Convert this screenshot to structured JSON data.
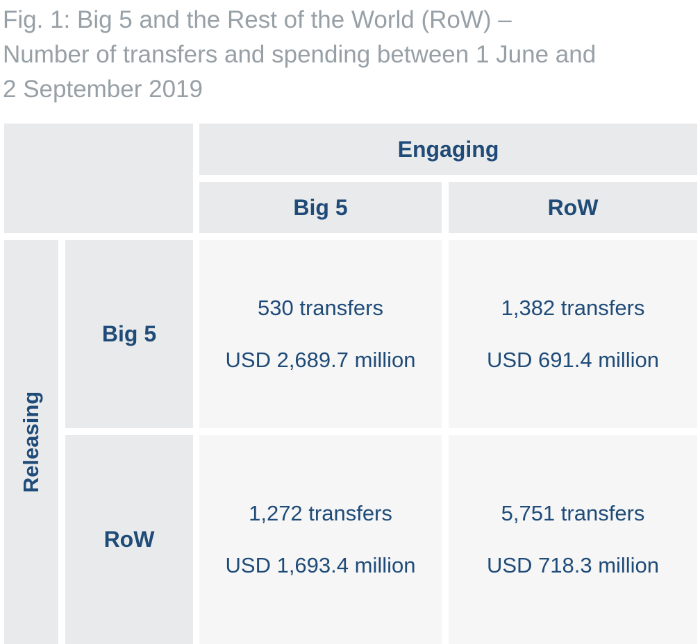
{
  "title": {
    "line1": "Fig. 1: Big 5 and the Rest of the World (RoW) –",
    "line2": "Number of transfers and spending between 1 June and",
    "line3": "2 September 2019"
  },
  "chart_data": {
    "type": "table",
    "column_group_label": "Engaging",
    "row_group_label": "Releasing",
    "columns": [
      "Big 5",
      "RoW"
    ],
    "rows": [
      "Big 5",
      "RoW"
    ],
    "cells": [
      [
        {
          "transfers": "530 transfers",
          "spending": "USD 2,689.7 million"
        },
        {
          "transfers": "1,382 transfers",
          "spending": "USD 691.4 million"
        }
      ],
      [
        {
          "transfers": "1,272 transfers",
          "spending": "USD 1,693.4 million"
        },
        {
          "transfers": "5,751 transfers",
          "spending": "USD 718.3 million"
        }
      ]
    ]
  },
  "colors": {
    "header_bg": "#e9eaeb",
    "body_bg": "#f6f6f6",
    "text_navy": "#1f4b78",
    "title_gray": "#97a0a6"
  }
}
